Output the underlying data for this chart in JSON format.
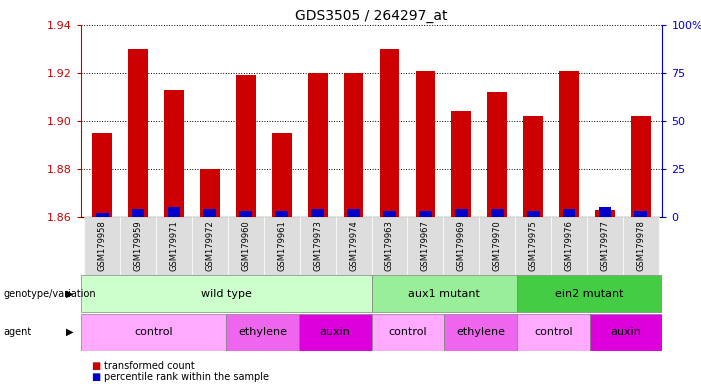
{
  "title": "GDS3505 / 264297_at",
  "samples": [
    "GSM179958",
    "GSM179959",
    "GSM179971",
    "GSM179972",
    "GSM179960",
    "GSM179961",
    "GSM179973",
    "GSM179974",
    "GSM179963",
    "GSM179967",
    "GSM179969",
    "GSM179970",
    "GSM179975",
    "GSM179976",
    "GSM179977",
    "GSM179978"
  ],
  "red_values": [
    1.895,
    1.93,
    1.913,
    1.88,
    1.919,
    1.895,
    1.92,
    1.92,
    1.93,
    1.921,
    1.904,
    1.912,
    1.902,
    1.921,
    1.863,
    1.902
  ],
  "blue_values": [
    2,
    4,
    5,
    4,
    3,
    3,
    4,
    4,
    3,
    3,
    4,
    4,
    3,
    4,
    5,
    3
  ],
  "ylim_left": [
    1.86,
    1.94
  ],
  "ylim_right": [
    0,
    100
  ],
  "yticks_left": [
    1.86,
    1.88,
    1.9,
    1.92,
    1.94
  ],
  "yticks_right": [
    0,
    25,
    50,
    75,
    100
  ],
  "base_value": 1.86,
  "genotype_groups": [
    {
      "label": "wild type",
      "start": 0,
      "end": 8,
      "color": "#ccffcc"
    },
    {
      "label": "aux1 mutant",
      "start": 8,
      "end": 12,
      "color": "#99ee99"
    },
    {
      "label": "ein2 mutant",
      "start": 12,
      "end": 16,
      "color": "#44cc44"
    }
  ],
  "agent_groups": [
    {
      "label": "control",
      "start": 0,
      "end": 4,
      "color": "#ffaaff"
    },
    {
      "label": "ethylene",
      "start": 4,
      "end": 6,
      "color": "#ee66ee"
    },
    {
      "label": "auxin",
      "start": 6,
      "end": 8,
      "color": "#dd00dd"
    },
    {
      "label": "control",
      "start": 8,
      "end": 10,
      "color": "#ffaaff"
    },
    {
      "label": "ethylene",
      "start": 10,
      "end": 12,
      "color": "#ee66ee"
    },
    {
      "label": "control",
      "start": 12,
      "end": 14,
      "color": "#ffaaff"
    },
    {
      "label": "auxin",
      "start": 14,
      "end": 16,
      "color": "#dd00dd"
    }
  ],
  "bar_color_red": "#cc0000",
  "bar_color_blue": "#0000cc",
  "bar_width": 0.55,
  "left_axis_color": "#cc0000",
  "right_axis_color": "#0000cc",
  "bg_color": "#ffffff",
  "plot_bg": "#ffffff",
  "xticklabel_bg": "#dddddd"
}
